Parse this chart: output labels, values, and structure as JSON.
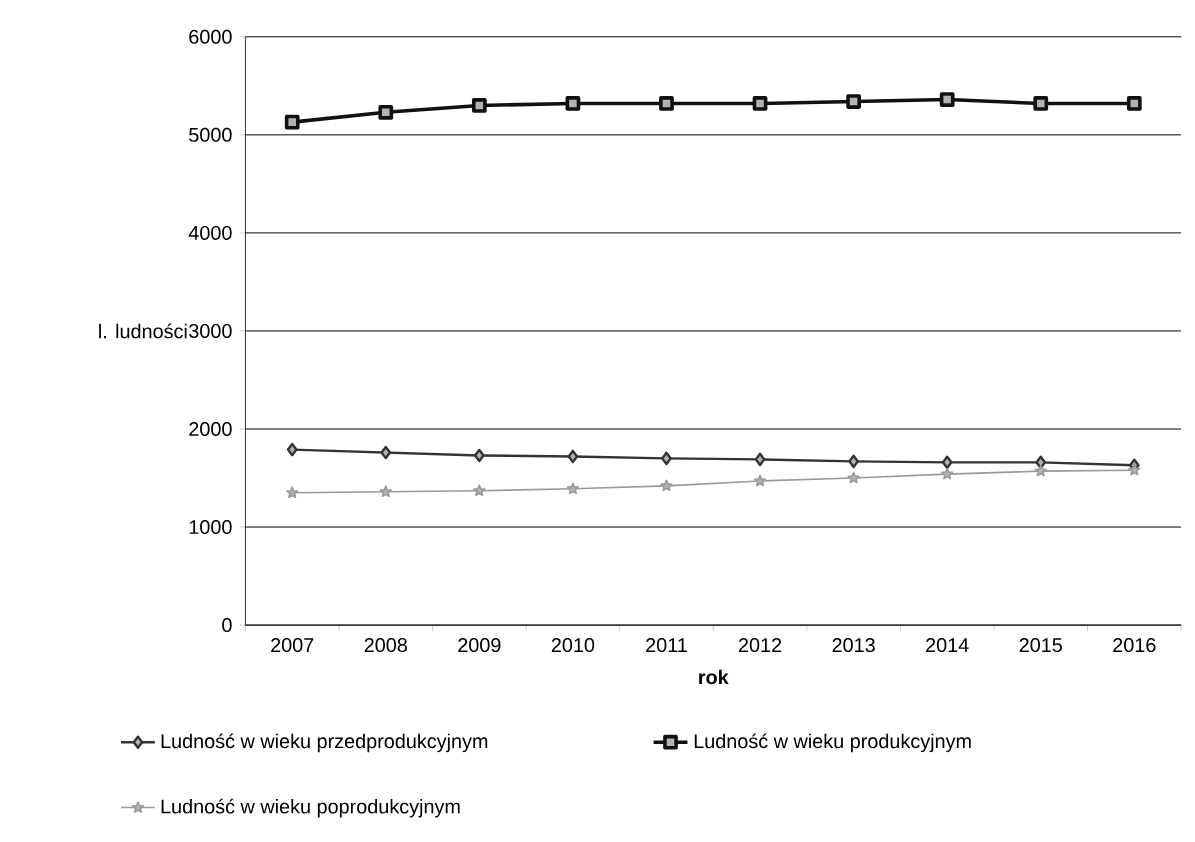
{
  "chart_data": {
    "type": "line",
    "xlabel": "rok",
    "ylabel": "l. ludności",
    "categories": [
      "2007",
      "2008",
      "2009",
      "2010",
      "2011",
      "2012",
      "2013",
      "2014",
      "2015",
      "2016"
    ],
    "series": [
      {
        "name": "Ludność w wieku przedprodukcyjnym",
        "color": "#333333",
        "marker": "diamond",
        "values": [
          1790,
          1760,
          1730,
          1720,
          1700,
          1690,
          1670,
          1660,
          1660,
          1630
        ]
      },
      {
        "name": "Ludność w wieku produkcyjnym",
        "color": "#111111",
        "marker": "square",
        "values": [
          5130,
          5230,
          5300,
          5320,
          5320,
          5320,
          5340,
          5360,
          5320,
          5320
        ]
      },
      {
        "name": "Ludność w wieku poprodukcyjnym",
        "color": "#999999",
        "marker": "star",
        "values": [
          1350,
          1360,
          1370,
          1390,
          1420,
          1470,
          1500,
          1540,
          1570,
          1580
        ]
      }
    ],
    "ylim": [
      0,
      6000
    ],
    "yticks": [
      0,
      1000,
      2000,
      3000,
      4000,
      5000,
      6000
    ],
    "grid": "y",
    "legend": "bottom",
    "line_style": "solid"
  }
}
